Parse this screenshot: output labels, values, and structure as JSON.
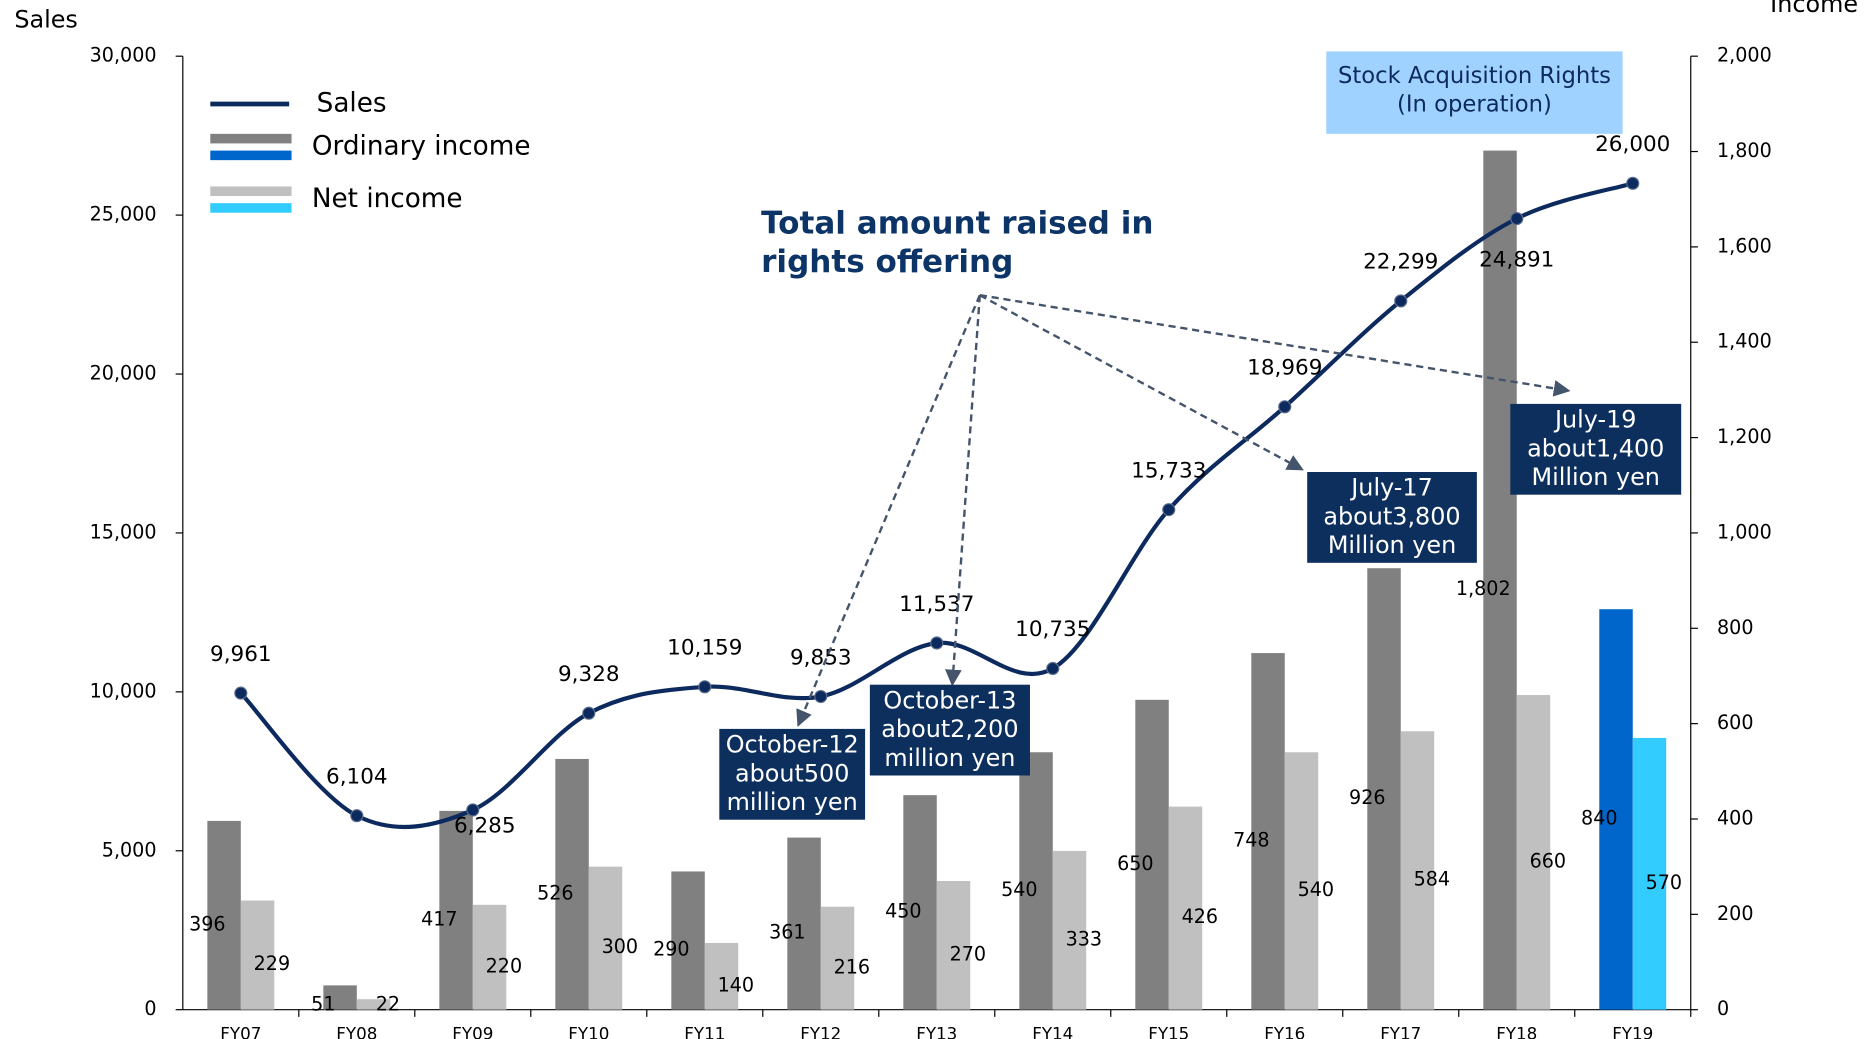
{
  "chart_data": {
    "type": "bar_line",
    "y_label": "Sales",
    "y2_label": "Income",
    "categories": [
      "FY07",
      "FY08",
      "FY09",
      "FY10",
      "FY11",
      "FY12",
      "FY13",
      "FY14",
      "FY15",
      "FY16",
      "FY17",
      "FY18",
      "FY19"
    ],
    "series": [
      {
        "name": "Sales",
        "type": "line",
        "color": "#0d2a5e",
        "values": [
          9961,
          6104,
          6285,
          9328,
          10159,
          9853,
          11537,
          10735,
          15733,
          18969,
          22299,
          24891,
          26000
        ],
        "value_labels": [
          "9,961",
          "6,104",
          "6,285",
          "9,328",
          "10,159",
          "9,853",
          "11,537",
          "10,735",
          "15,733",
          "18,969",
          "22,299",
          "24,891",
          "26,000"
        ]
      },
      {
        "name": "Ordinary income",
        "type": "bar",
        "axis": "y2",
        "colors": [
          "#808080",
          "#808080",
          "#808080",
          "#808080",
          "#808080",
          "#808080",
          "#808080",
          "#808080",
          "#808080",
          "#808080",
          "#808080",
          "#808080",
          "#0066cc"
        ],
        "values": [
          396,
          51,
          417,
          526,
          290,
          361,
          450,
          540,
          650,
          748,
          926,
          1802,
          840
        ],
        "value_labels": [
          "396",
          "51",
          "417",
          "526",
          "290",
          "361",
          "450",
          "540",
          "650",
          "748",
          "926",
          "1,802",
          "840"
        ]
      },
      {
        "name": "Net income",
        "type": "bar",
        "axis": "y2",
        "colors": [
          "#c0c0c0",
          "#c0c0c0",
          "#c0c0c0",
          "#c0c0c0",
          "#c0c0c0",
          "#c0c0c0",
          "#c0c0c0",
          "#c0c0c0",
          "#c0c0c0",
          "#c0c0c0",
          "#c0c0c0",
          "#c0c0c0",
          "#33ccff"
        ],
        "values": [
          229,
          22,
          220,
          300,
          140,
          216,
          270,
          333,
          426,
          540,
          584,
          660,
          570
        ]
      }
    ],
    "ylim": [
      0,
      30000
    ],
    "yticks": [
      0,
      {
        "value": 5000,
        "label": "5,000"
      },
      {
        "value": 10000,
        "label": "10,000"
      },
      {
        "value": 15000,
        "label": "15,000"
      },
      {
        "value": 20000,
        "label": "20,000"
      },
      {
        "value": 25000,
        "label": "25,000"
      },
      {
        "value": 30000,
        "label": "30,000"
      }
    ],
    "y2lim": [
      0,
      2000
    ],
    "y2ticks": [
      0,
      200,
      400,
      600,
      800,
      {
        "value": 1000,
        "label": "1,000"
      },
      {
        "value": 1200,
        "label": "1,200"
      },
      {
        "value": 1400,
        "label": "1,400"
      },
      {
        "value": 1600,
        "label": "1,600"
      },
      {
        "value": 1800,
        "label": "1,800"
      },
      {
        "value": 2000,
        "label": "2,000"
      }
    ],
    "annotations": {
      "title": [
        "Total amount raised in",
        "rights offering"
      ],
      "boxes": [
        {
          "lines": [
            "October-12",
            "about500",
            "million yen"
          ]
        },
        {
          "lines": [
            "October-13",
            "about2,200",
            "million yen"
          ]
        },
        {
          "lines": [
            "July-17",
            "about3,800",
            "Million yen"
          ]
        },
        {
          "lines": [
            "July-19",
            "about1,400",
            "Million yen"
          ]
        }
      ],
      "note": {
        "lines": [
          "Stock Acquisition Rights",
          "(In operation)"
        ]
      }
    }
  }
}
